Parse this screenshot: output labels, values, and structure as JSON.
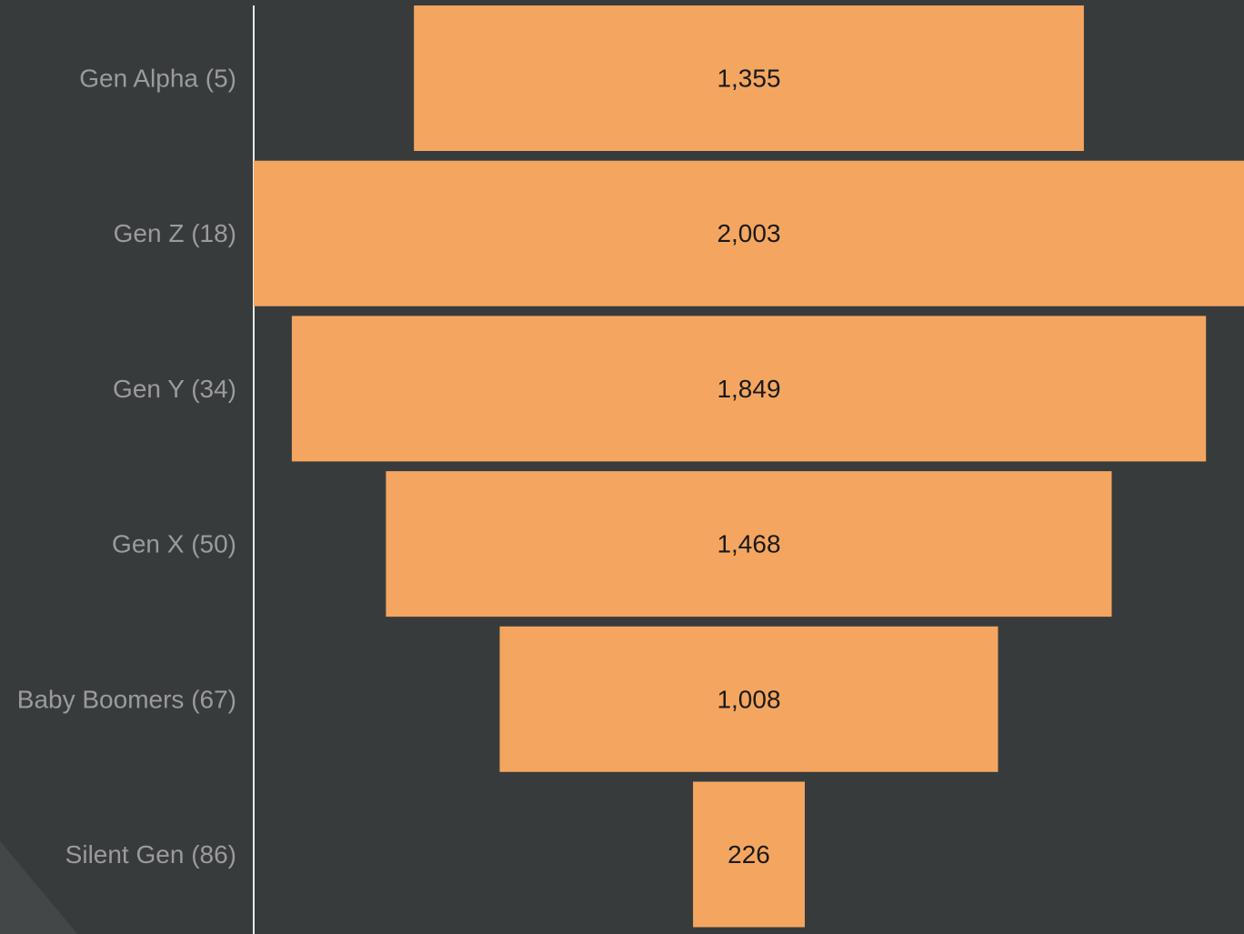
{
  "colors": {
    "background": "#383b3c",
    "bar": "#f4a660",
    "axis_line": "#e8e8e8",
    "category_text": "#9a9b9b",
    "value_text": "#1a1a1a",
    "corner_shape": "#444748"
  },
  "chart_data": {
    "type": "bar",
    "orientation": "horizontal-funnel",
    "categories": [
      "Gen Alpha (5)",
      "Gen Z (18)",
      "Gen Y (34)",
      "Gen X (50)",
      "Baby Boomers (67)",
      "Silent Gen (86)"
    ],
    "values": [
      1355,
      2003,
      1849,
      1468,
      1008,
      226
    ],
    "value_labels": [
      "1,355",
      "2,003",
      "1,849",
      "1,468",
      "1,008",
      "226"
    ],
    "title": "",
    "xlabel": "",
    "ylabel": "",
    "xlim": [
      0,
      2003
    ],
    "grid": false,
    "legend": "none"
  }
}
